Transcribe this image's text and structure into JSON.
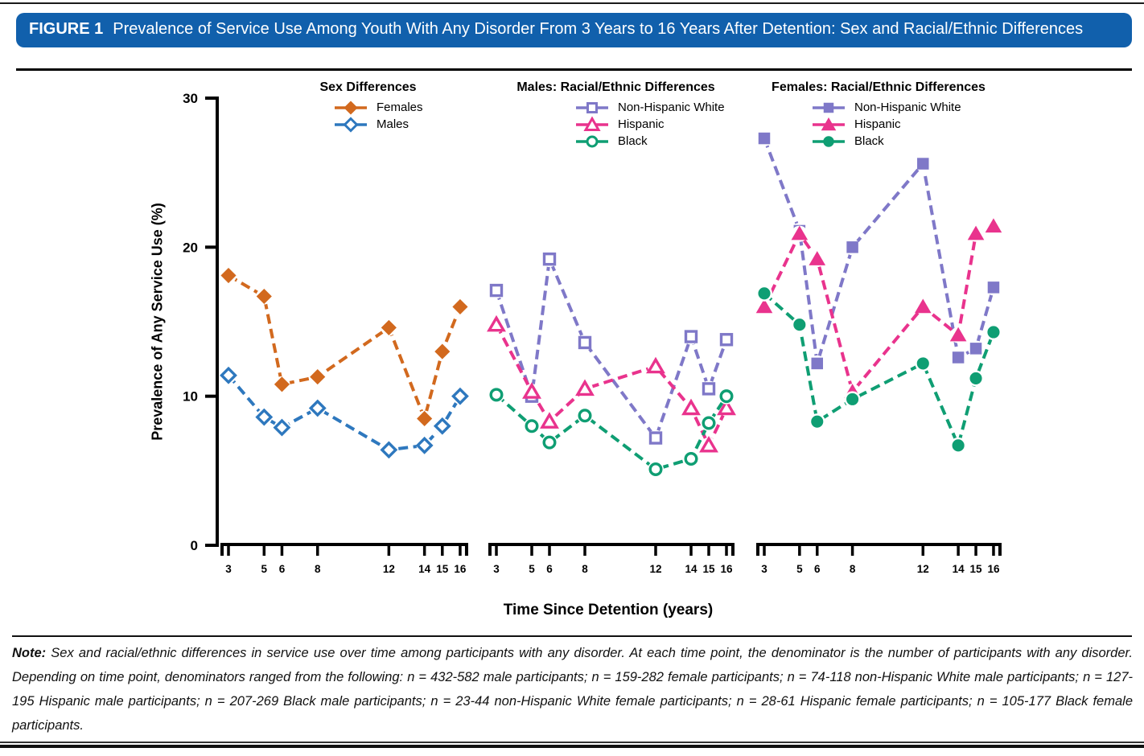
{
  "banner": {
    "label": "FIGURE 1",
    "title": "Prevalence of Service Use Among Youth With Any Disorder From 3 Years to 16 Years After Detention: Sex and Racial/Ethnic Differences"
  },
  "chart_data": {
    "type": "line",
    "x_categories": [
      3,
      5,
      6,
      8,
      12,
      14,
      15,
      16
    ],
    "xlabel": "Time Since Detention (years)",
    "ylabel": "Prevalence of Any Service Use (%)",
    "ylim": [
      0,
      30
    ],
    "y_ticks": [
      0,
      10,
      20,
      30
    ],
    "grid": false,
    "legend_position": "top",
    "line_style": "dashed",
    "panels": [
      {
        "title": "Sex Differences",
        "series": [
          {
            "name": "Females",
            "marker": "diamond",
            "filled": true,
            "color": "#d2691e",
            "values": [
              18.1,
              16.7,
              10.8,
              11.3,
              14.6,
              8.5,
              13.0,
              16.0
            ]
          },
          {
            "name": "Males",
            "marker": "diamond",
            "filled": false,
            "color": "#2e78be",
            "values": [
              11.4,
              8.6,
              7.9,
              9.2,
              6.4,
              6.7,
              8.0,
              10.0
            ]
          }
        ]
      },
      {
        "title": "Males: Racial/Ethnic Differences",
        "series": [
          {
            "name": "Non-Hispanic White",
            "marker": "square",
            "filled": false,
            "color": "#7f78c8",
            "values": [
              17.1,
              10.0,
              19.2,
              13.6,
              7.2,
              14.0,
              10.5,
              13.8
            ]
          },
          {
            "name": "Hispanic",
            "marker": "triangle",
            "filled": false,
            "color": "#e9338d",
            "values": [
              14.8,
              10.3,
              8.3,
              10.5,
              12.0,
              9.2,
              6.7,
              9.2
            ]
          },
          {
            "name": "Black",
            "marker": "circle",
            "filled": false,
            "color": "#0f9e73",
            "values": [
              10.1,
              8.0,
              6.9,
              8.7,
              5.1,
              5.8,
              8.2,
              10.0
            ]
          }
        ]
      },
      {
        "title": "Females: Racial/Ethnic Differences",
        "series": [
          {
            "name": "Non-Hispanic White",
            "marker": "square",
            "filled": true,
            "color": "#7f78c8",
            "values": [
              27.3,
              21.1,
              12.2,
              20.0,
              25.6,
              12.6,
              13.2,
              17.3
            ]
          },
          {
            "name": "Hispanic",
            "marker": "triangle",
            "filled": true,
            "color": "#e9338d",
            "values": [
              16.0,
              20.9,
              19.2,
              10.3,
              16.0,
              14.1,
              20.9,
              21.4
            ]
          },
          {
            "name": "Black",
            "marker": "circle",
            "filled": true,
            "color": "#0f9e73",
            "values": [
              16.9,
              14.8,
              8.3,
              9.8,
              12.2,
              6.7,
              11.2,
              14.3
            ]
          }
        ]
      }
    ]
  },
  "note": {
    "label": "Note:",
    "text": "Sex and racial/ethnic differences in service use over time among participants with any disorder. At each time point, the denominator is the number of participants with any disorder. Depending on time point, denominators ranged from the following: n = 432-582 male participants; n = 159-282 female participants; n = 74-118 non-Hispanic White male participants; n = 127-195 Hispanic male participants; n = 207-269 Black male participants; n = 23-44 non-Hispanic White female participants; n = 28-61 Hispanic female participants; n = 105-177 Black female participants."
  }
}
